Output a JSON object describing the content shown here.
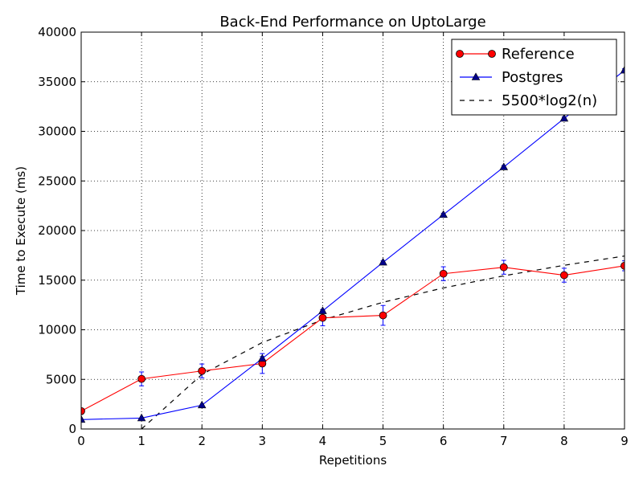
{
  "chart_data": {
    "type": "line",
    "title": "Back-End Performance on  UptoLarge",
    "xlabel": "Repetitions",
    "ylabel": "Time to Execute (ms)",
    "xlim": [
      0,
      9
    ],
    "ylim": [
      0,
      40000
    ],
    "xticks": [
      "0",
      "1",
      "2",
      "3",
      "4",
      "5",
      "6",
      "7",
      "8",
      "9"
    ],
    "yticks": [
      "0",
      "5000",
      "10000",
      "15000",
      "20000",
      "25000",
      "30000",
      "35000",
      "40000"
    ],
    "grid": true,
    "legend_position": "top-right",
    "series": [
      {
        "name": "Reference",
        "color": "#ff0000",
        "marker": "circle",
        "marker_color": "#ff0000",
        "x": [
          0,
          1,
          2,
          3,
          4,
          5,
          6,
          7,
          8,
          9
        ],
        "y": [
          1800,
          5050,
          5850,
          6600,
          11200,
          11450,
          15650,
          16300,
          15500,
          16450
        ],
        "yerr": [
          250,
          700,
          700,
          1000,
          800,
          1000,
          700,
          700,
          700,
          500
        ]
      },
      {
        "name": "Postgres",
        "color": "#0000ff",
        "marker": "triangle",
        "marker_color": "#00008b",
        "x": [
          0,
          1,
          2,
          3,
          4,
          5,
          6,
          7,
          8,
          9
        ],
        "y": [
          950,
          1100,
          2400,
          7100,
          11900,
          16800,
          21600,
          26400,
          31300,
          36150
        ],
        "yerr": [
          0,
          0,
          0,
          200,
          150,
          150,
          150,
          150,
          150,
          150
        ]
      },
      {
        "name": "5500*log2(n)",
        "color": "#000000",
        "dash": true,
        "x": [
          1,
          2,
          3,
          4,
          5,
          6,
          7,
          8,
          9
        ],
        "y": [
          0,
          5500,
          8717,
          11000,
          12771,
          14217,
          15440,
          16500,
          17435
        ]
      }
    ]
  }
}
